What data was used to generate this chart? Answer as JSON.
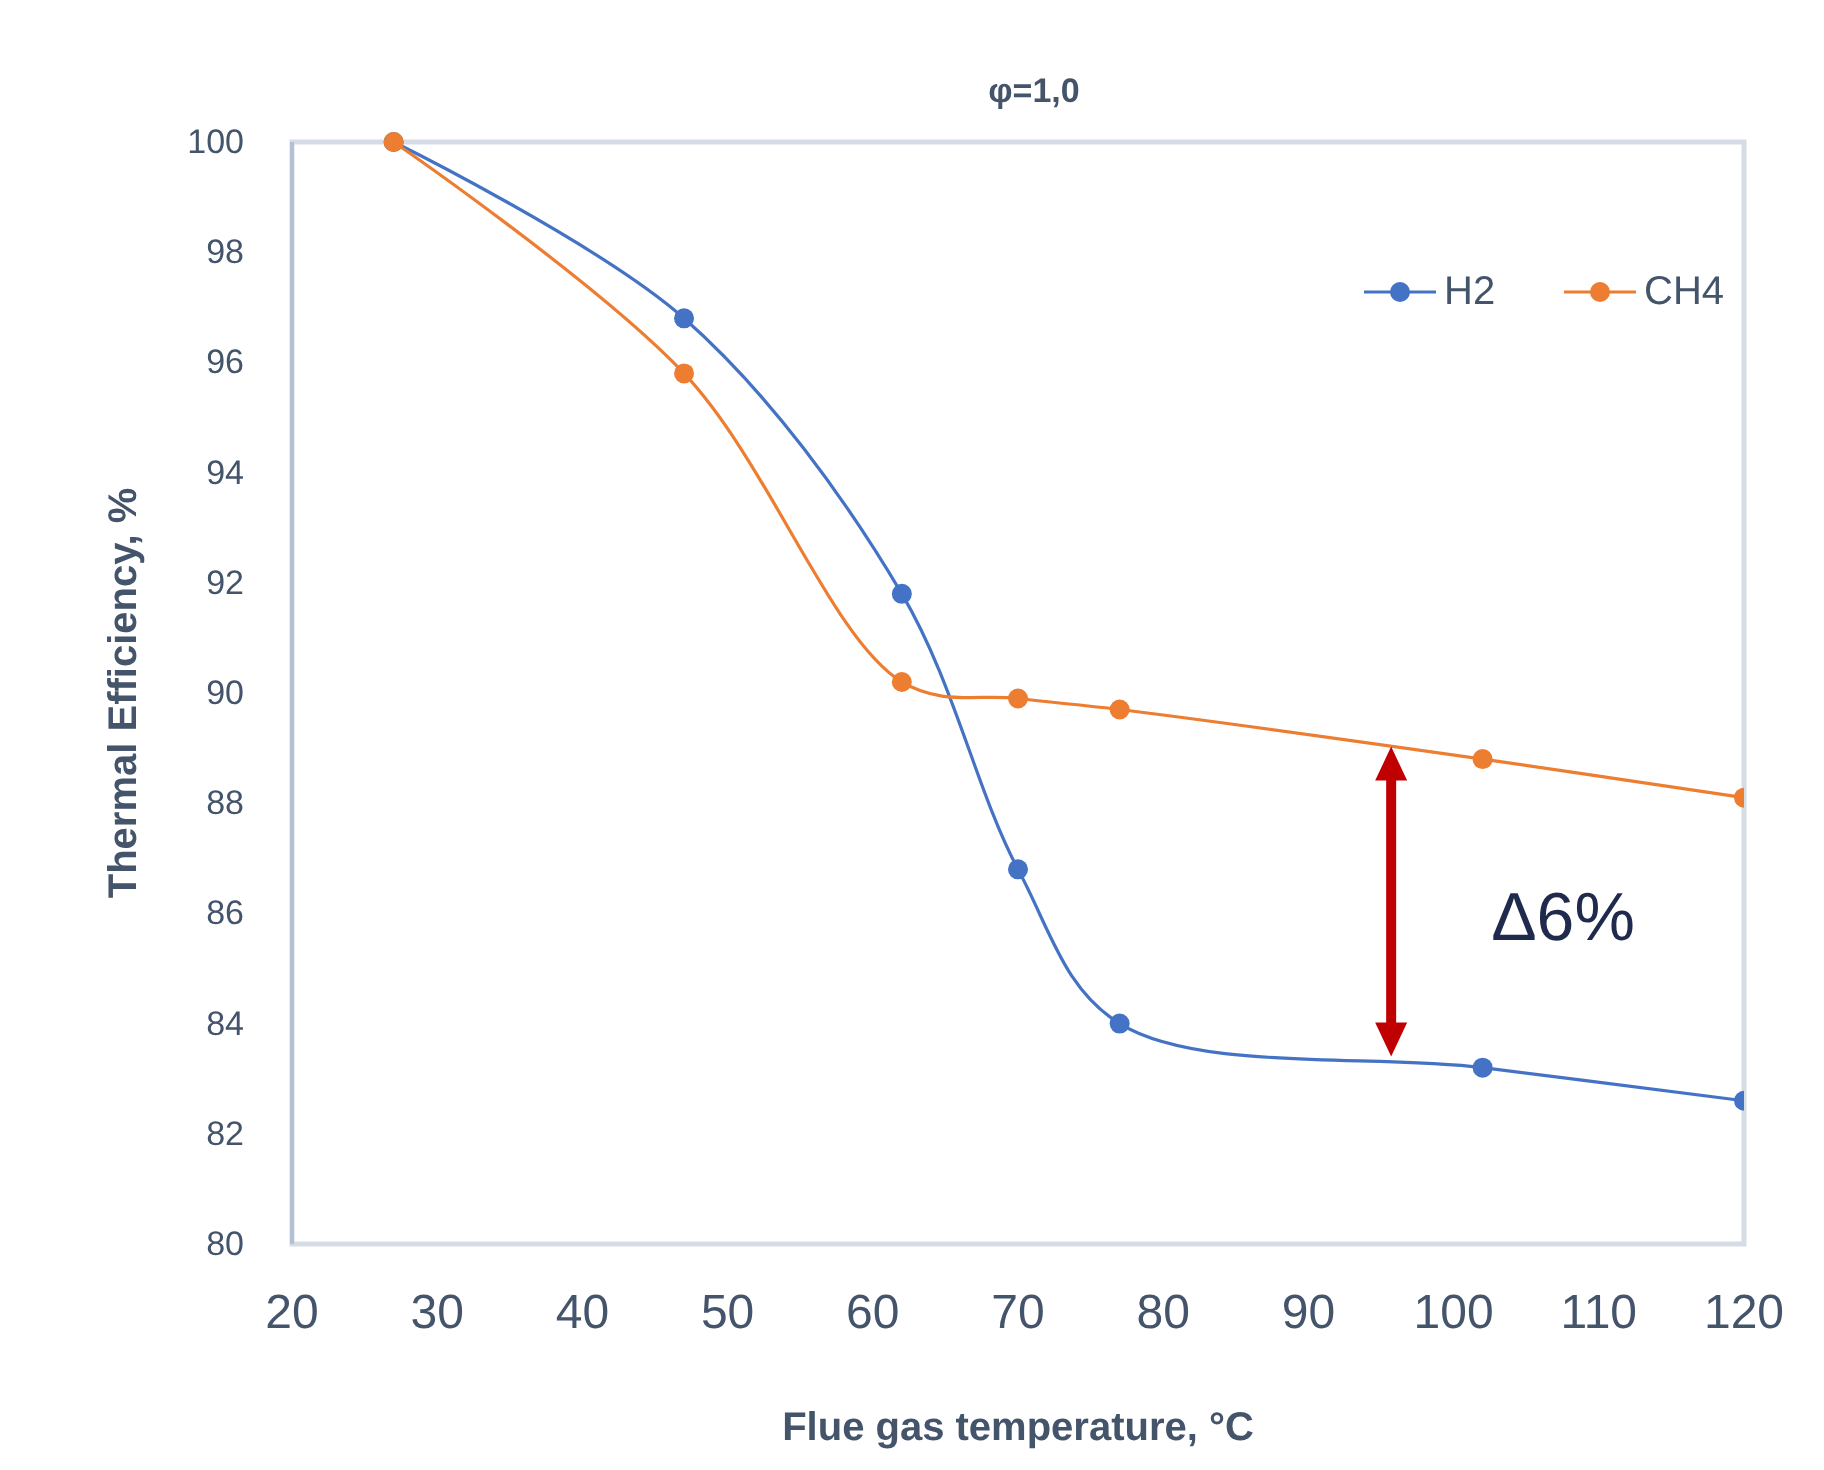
{
  "chart_data": {
    "type": "line",
    "title": "φ=1,0",
    "xlabel": "Flue gas temperature, °C",
    "ylabel": "Thermal Efficiency, %",
    "xlim": [
      20,
      120
    ],
    "xticks": [
      20,
      30,
      40,
      50,
      60,
      70,
      80,
      90,
      100,
      110,
      120
    ],
    "ylim": [
      80,
      100
    ],
    "yticks": [
      80,
      82,
      84,
      86,
      88,
      90,
      92,
      94,
      96,
      98,
      100
    ],
    "grid": false,
    "legend": "top right",
    "marker": "circle",
    "line_style": "solid",
    "series": [
      {
        "name": "H2",
        "color": "#4472c4",
        "x": [
          27,
          47,
          62,
          70,
          77,
          102,
          120
        ],
        "values": [
          100,
          96.8,
          91.8,
          86.8,
          84.0,
          83.2,
          82.6
        ]
      },
      {
        "name": "CH4",
        "color": "#ed7d31",
        "x": [
          27,
          47,
          62,
          70,
          77,
          102,
          120
        ],
        "values": [
          100,
          95.8,
          90.2,
          89.9,
          89.7,
          88.8,
          88.1
        ]
      }
    ],
    "annotations": [
      "Δ6%"
    ]
  }
}
